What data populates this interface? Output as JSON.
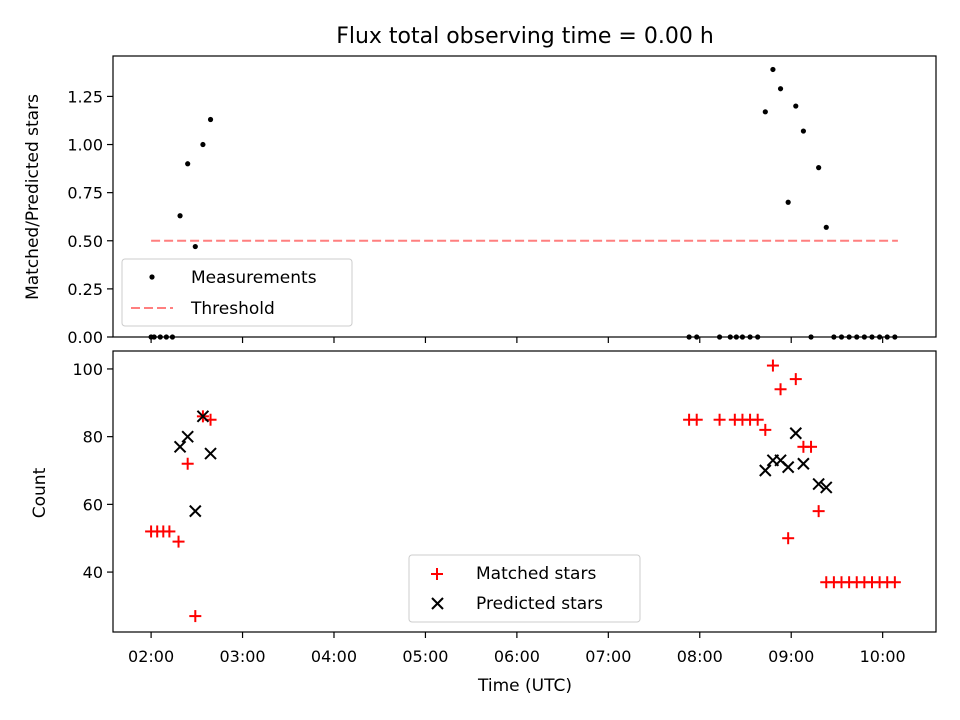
{
  "chart_data": [
    {
      "type": "scatter",
      "title": "Flux total observing time = 0.00 h",
      "xlabel": "",
      "ylabel": "Matched/Predicted stars",
      "xlim": [
        "01:35",
        "10:35"
      ],
      "ylim": [
        0,
        1.46
      ],
      "x_ticks": [
        "02:00",
        "03:00",
        "04:00",
        "05:00",
        "06:00",
        "07:00",
        "08:00",
        "09:00",
        "10:00"
      ],
      "y_ticks": [
        "0.00",
        "0.25",
        "0.50",
        "0.75",
        "1.00",
        "1.25"
      ],
      "legend_position": "lower-left",
      "grid": false,
      "series": [
        {
          "name": "Measurements",
          "marker": "dot",
          "color": "#000000",
          "points": [
            [
              "02:00",
              0
            ],
            [
              "02:02",
              0
            ],
            [
              "02:06",
              0
            ],
            [
              "02:10",
              0
            ],
            [
              "02:14",
              0
            ],
            [
              "02:19",
              0.63
            ],
            [
              "02:24",
              0.9
            ],
            [
              "02:29",
              0.47
            ],
            [
              "02:34",
              1.0
            ],
            [
              "02:39",
              1.13
            ],
            [
              "07:53",
              0
            ],
            [
              "07:58",
              0
            ],
            [
              "08:13",
              0
            ],
            [
              "08:20",
              0
            ],
            [
              "08:24",
              0
            ],
            [
              "08:28",
              0
            ],
            [
              "08:33",
              0
            ],
            [
              "08:38",
              0
            ],
            [
              "08:43",
              1.17
            ],
            [
              "08:48",
              1.39
            ],
            [
              "08:53",
              1.29
            ],
            [
              "08:58",
              0.7
            ],
            [
              "09:03",
              1.2
            ],
            [
              "09:08",
              1.07
            ],
            [
              "09:13",
              0
            ],
            [
              "09:18",
              0.88
            ],
            [
              "09:23",
              0.57
            ],
            [
              "09:28",
              0
            ],
            [
              "09:33",
              0
            ],
            [
              "09:38",
              0
            ],
            [
              "09:43",
              0
            ],
            [
              "09:48",
              0
            ],
            [
              "09:53",
              0
            ],
            [
              "09:58",
              0
            ],
            [
              "10:03",
              0
            ],
            [
              "10:08",
              0
            ]
          ]
        },
        {
          "name": "Threshold",
          "style": "dashed-line",
          "color": "#ff7f7f",
          "points": [
            [
              "02:00",
              0.5
            ],
            [
              "10:10",
              0.5
            ]
          ]
        }
      ]
    },
    {
      "type": "scatter",
      "title": "",
      "xlabel": "Time (UTC)",
      "ylabel": "Count",
      "xlim": [
        "01:35",
        "10:35"
      ],
      "ylim": [
        22.3,
        105.3
      ],
      "x_ticks": [
        "02:00",
        "03:00",
        "04:00",
        "05:00",
        "06:00",
        "07:00",
        "08:00",
        "09:00",
        "10:00"
      ],
      "y_ticks": [
        "40",
        "60",
        "80",
        "100"
      ],
      "legend_position": "lower-center",
      "grid": false,
      "series": [
        {
          "name": "Matched stars",
          "marker": "plus",
          "color": "#ff0000",
          "points": [
            [
              "02:00",
              52
            ],
            [
              "02:04",
              52
            ],
            [
              "02:08",
              52
            ],
            [
              "02:12",
              52
            ],
            [
              "02:18",
              49
            ],
            [
              "02:24",
              72
            ],
            [
              "02:29",
              27
            ],
            [
              "02:34",
              86
            ],
            [
              "02:39",
              85
            ],
            [
              "07:53",
              85
            ],
            [
              "07:58",
              85
            ],
            [
              "08:13",
              85
            ],
            [
              "08:23",
              85
            ],
            [
              "08:28",
              85
            ],
            [
              "08:33",
              85
            ],
            [
              "08:38",
              85
            ],
            [
              "08:43",
              82
            ],
            [
              "08:48",
              101
            ],
            [
              "08:53",
              94
            ],
            [
              "08:58",
              50
            ],
            [
              "09:03",
              97
            ],
            [
              "09:08",
              77
            ],
            [
              "09:13",
              77
            ],
            [
              "09:18",
              58
            ],
            [
              "09:23",
              37
            ],
            [
              "09:28",
              37
            ],
            [
              "09:33",
              37
            ],
            [
              "09:38",
              37
            ],
            [
              "09:43",
              37
            ],
            [
              "09:48",
              37
            ],
            [
              "09:53",
              37
            ],
            [
              "09:58",
              37
            ],
            [
              "10:03",
              37
            ],
            [
              "10:08",
              37
            ]
          ]
        },
        {
          "name": "Predicted stars",
          "marker": "x",
          "color": "#000000",
          "points": [
            [
              "02:19",
              77
            ],
            [
              "02:24",
              80
            ],
            [
              "02:29",
              58
            ],
            [
              "02:34",
              86
            ],
            [
              "02:39",
              75
            ],
            [
              "08:43",
              70
            ],
            [
              "08:48",
              73
            ],
            [
              "08:53",
              73
            ],
            [
              "08:58",
              71
            ],
            [
              "09:03",
              81
            ],
            [
              "09:08",
              72
            ],
            [
              "09:18",
              66
            ],
            [
              "09:23",
              65
            ]
          ]
        }
      ]
    }
  ]
}
